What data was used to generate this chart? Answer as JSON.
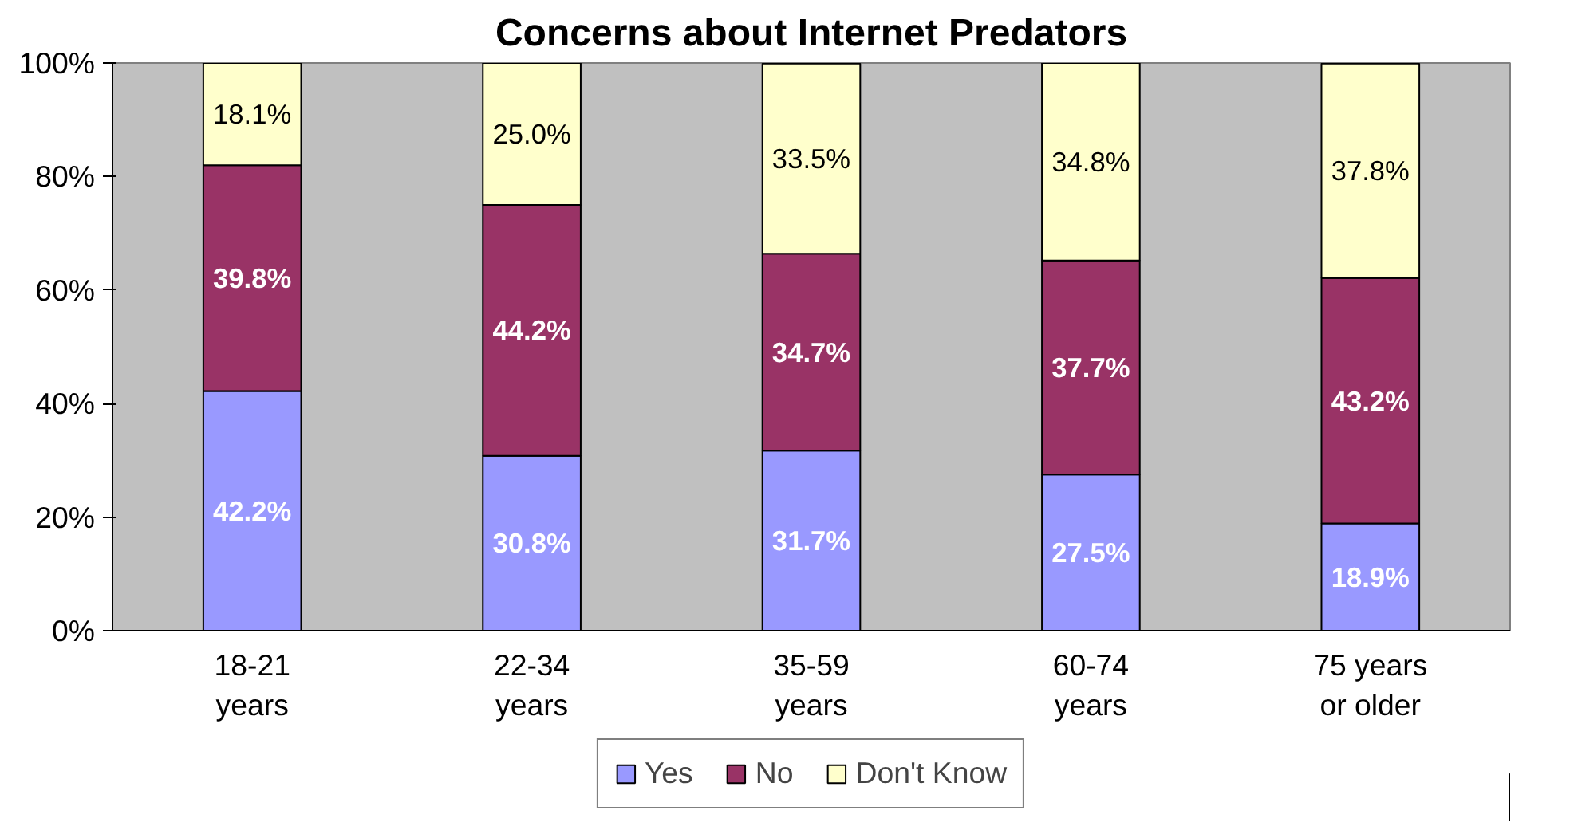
{
  "chart_data": {
    "type": "bar",
    "title": "Concerns about Internet Predators",
    "stacked": true,
    "categories": [
      "18-21\nyears",
      "22-34\nyears",
      "35-59\nyears",
      "60-74\nyears",
      "75 years\nor older"
    ],
    "series": [
      {
        "name": "Yes",
        "color": "#9999ff",
        "values": [
          42.2,
          30.8,
          31.7,
          27.5,
          18.9
        ],
        "value_labels": [
          "42.2%",
          "30.8%",
          "31.7%",
          "27.5%",
          "18.9%"
        ]
      },
      {
        "name": "No",
        "color": "#993366",
        "values": [
          39.8,
          44.2,
          34.7,
          37.7,
          43.2
        ],
        "value_labels": [
          "39.8%",
          "44.2%",
          "34.7%",
          "37.7%",
          "43.2%"
        ]
      },
      {
        "name": "Don't Know",
        "color": "#ffffcc",
        "values": [
          18.1,
          25.0,
          33.5,
          34.8,
          37.8
        ],
        "value_labels": [
          "18.1%",
          "25.0%",
          "33.5%",
          "34.8%",
          "37.8%"
        ]
      }
    ],
    "ylim": [
      0,
      100
    ],
    "yticks": [
      {
        "value": 0,
        "label": "0%"
      },
      {
        "value": 20,
        "label": "20%"
      },
      {
        "value": 40,
        "label": "40%"
      },
      {
        "value": 60,
        "label": "60%"
      },
      {
        "value": 80,
        "label": "80%"
      },
      {
        "value": 100,
        "label": "100%"
      }
    ],
    "grid": false,
    "legend": "bottom"
  }
}
